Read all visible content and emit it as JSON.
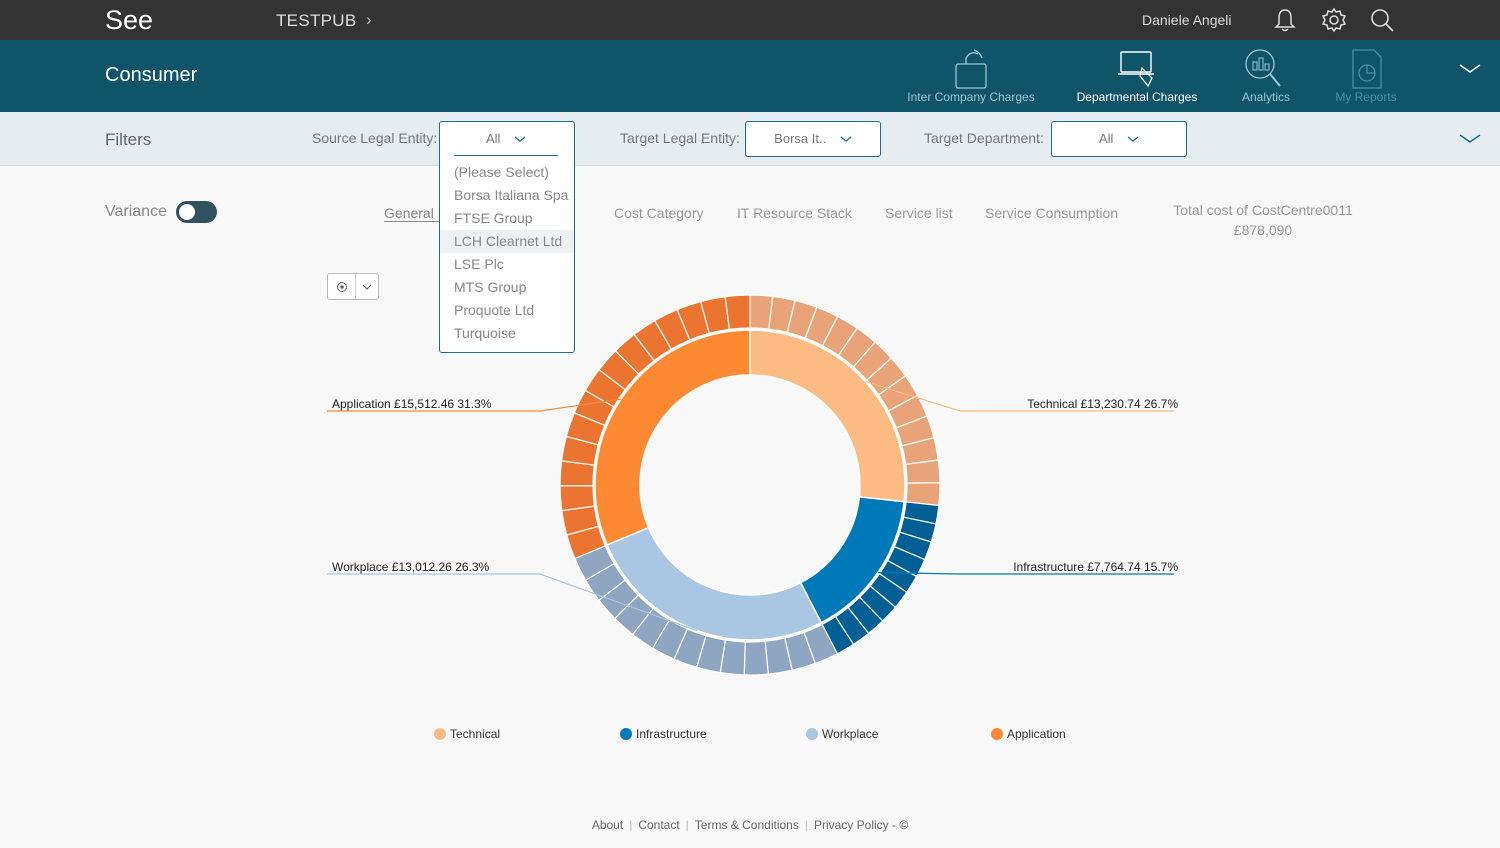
{
  "app": {
    "brand": "See",
    "breadcrumb": "TESTPUB",
    "user": "Daniele Angeli"
  },
  "header": {
    "title": "Consumer",
    "nav": [
      {
        "label": "Inter Company Charges",
        "icon": "inter-company-icon"
      },
      {
        "label": "Departmental Charges",
        "icon": "departmental-icon",
        "active": true
      },
      {
        "label": "Analytics",
        "icon": "analytics-icon"
      },
      {
        "label": "My Reports",
        "icon": "reports-icon"
      }
    ]
  },
  "filters": {
    "title": "Filters",
    "source_label": "Source Legal Entity:",
    "source_value": "All",
    "target_label": "Target Legal Entity:",
    "target_value": "Borsa It..",
    "dept_label": "Target Department:",
    "dept_value": "All",
    "source_options": [
      "(Please Select)",
      "Borsa Italiana Spa",
      "FTSE Group",
      "LCH Clearnet Ltd",
      "LSE Plc",
      "MTS Group",
      "Proquote Ltd",
      "Turquoise"
    ]
  },
  "view": {
    "variance_label": "Variance",
    "tabs": [
      "General L",
      "Cost Category",
      "IT Resource Stack",
      "Service list",
      "Service Consumption"
    ],
    "total_label": "Total cost of CostCentre0011",
    "total_value": "£878,090"
  },
  "colors": {
    "technical": "#fdbb84",
    "infrastructure": "#0079b8",
    "workplace": "#a9c6e3",
    "application": "#fd8a32"
  },
  "chart_data": {
    "type": "pie",
    "style": "sunburst-donut",
    "series": [
      {
        "name": "Technical",
        "value": 13230.74,
        "percent": 26.7,
        "label": "£13,230.74",
        "pct_label": "26.7%"
      },
      {
        "name": "Infrastructure",
        "value": 7764.74,
        "percent": 15.7,
        "label": "£7,764.74",
        "pct_label": "15.7%"
      },
      {
        "name": "Workplace",
        "value": 13012.26,
        "percent": 26.3,
        "label": "£13,012.26",
        "pct_label": "26.3%"
      },
      {
        "name": "Application",
        "value": 15512.46,
        "percent": 31.3,
        "label": "£15,512.46",
        "pct_label": "31.3%"
      }
    ],
    "legend": [
      "Technical",
      "Infrastructure",
      "Workplace",
      "Application"
    ],
    "legend_position": "bottom"
  },
  "footer": {
    "about": "About",
    "contact": "Contact",
    "terms": "Terms & Conditions",
    "privacy": "Privacy Policy - ©"
  }
}
